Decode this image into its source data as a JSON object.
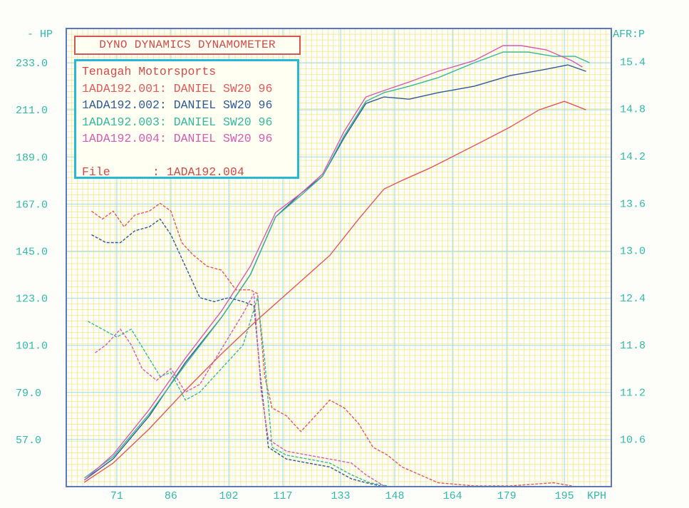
{
  "header": {
    "title": "DYNO DYNAMICS DYNAMOMETER",
    "left_axis_label": "- HP",
    "right_axis_label": "AFR:P",
    "x_unit": "KPH"
  },
  "info": {
    "shop": "Tenagah Motorsports",
    "runs": [
      "1ADA192.001: DANIEL SW20 96",
      "1ADA192.002: DANIEL SW20 96",
      "1ADA192.003: DANIEL SW20 96",
      "1ADA192.004: DANIEL SW20 96"
    ],
    "file_line": "File      : 1ADA192.004"
  },
  "colors": {
    "grid_yellow": "#f2e98e",
    "grid_cyan": "#9fdbe6",
    "axis_frame": "#5b79b8",
    "tick_text": "#31b9a8",
    "run1": "#e2585a",
    "run2": "#2f5a97",
    "run3": "#36b79d",
    "run4": "#d65bb5"
  },
  "chart_data": {
    "type": "line",
    "title": "DYNO DYNAMICS DYNAMOMETER",
    "xlabel": "KPH",
    "ylabel": "HP",
    "y2label": "AFR:P",
    "xlim": [
      57,
      208
    ],
    "ylim": [
      35,
      249
    ],
    "y2lim": [
      10.0,
      15.82
    ],
    "x_ticks": [
      "71",
      "86",
      "102",
      "117",
      "133",
      "148",
      "164",
      "179",
      "195"
    ],
    "y_ticks": [
      "57.0",
      "79.0",
      "101.0",
      "123.0",
      "145.0",
      "167.0",
      "189.0",
      "211.0",
      "233.0"
    ],
    "y2_ticks": [
      "10.6",
      "11.2",
      "11.8",
      "12.4",
      "13.0",
      "13.6",
      "14.2",
      "14.8",
      "15.4"
    ],
    "grid": true,
    "legend": "top-left box",
    "series": [
      {
        "name": "1ADA192.001: DANIEL SW20 96",
        "axis": "HP",
        "color": "#e2585a",
        "x": [
          62,
          70,
          80,
          90,
          100,
          110,
          120,
          130,
          138,
          145,
          150,
          158,
          165,
          172,
          180,
          188,
          195,
          201
        ],
        "y": [
          37,
          46,
          62,
          80,
          97,
          113,
          128,
          143,
          160,
          174,
          178,
          184,
          190,
          196,
          203,
          211,
          215,
          211
        ]
      },
      {
        "name": "1ADA192.002: DANIEL SW20 96",
        "axis": "HP",
        "color": "#2f5a97",
        "x": [
          62,
          70,
          80,
          90,
          100,
          108,
          115,
          122,
          128,
          134,
          140,
          145,
          152,
          160,
          170,
          180,
          190,
          196,
          201
        ],
        "y": [
          38,
          48,
          68,
          93,
          114,
          134,
          161,
          172,
          180,
          198,
          214,
          217,
          216,
          219,
          222,
          227,
          230,
          232,
          229
        ]
      },
      {
        "name": "1ADA192.003: DANIEL SW20 96",
        "axis": "HP",
        "color": "#36b79d",
        "x": [
          62,
          70,
          80,
          90,
          100,
          108,
          115,
          122,
          128,
          134,
          140,
          145,
          152,
          160,
          170,
          178,
          185,
          192,
          198,
          202
        ],
        "y": [
          39,
          49,
          69,
          92,
          114,
          134,
          161,
          171,
          180,
          199,
          215,
          219,
          222,
          226,
          233,
          238,
          238,
          236,
          236,
          233
        ]
      },
      {
        "name": "1ADA192.004: DANIEL SW20 96",
        "axis": "HP",
        "color": "#d65bb5",
        "x": [
          62,
          70,
          80,
          90,
          100,
          108,
          115,
          122,
          128,
          134,
          140,
          145,
          152,
          160,
          170,
          178,
          183,
          190,
          197,
          200
        ],
        "y": [
          38,
          50,
          71,
          95,
          117,
          138,
          163,
          172,
          181,
          201,
          217,
          220,
          224,
          229,
          234,
          241,
          241,
          239,
          234,
          231
        ]
      },
      {
        "name": "1ADA192.001 AFR",
        "axis": "AFR",
        "color": "#e2585a",
        "dashed": true,
        "x": [
          64,
          67,
          70,
          73,
          76,
          80,
          83,
          86,
          89,
          92,
          96,
          100,
          104,
          108,
          110,
          112,
          114,
          118,
          122,
          126,
          130,
          134,
          138,
          142,
          146,
          150,
          155,
          160,
          170,
          180,
          192,
          197
        ],
        "y": [
          13.5,
          13.4,
          13.5,
          13.3,
          13.45,
          13.5,
          13.6,
          13.5,
          13.1,
          12.95,
          12.8,
          12.75,
          12.5,
          12.5,
          12.45,
          11.4,
          11.0,
          10.9,
          10.7,
          10.9,
          11.1,
          11.0,
          10.8,
          10.5,
          10.4,
          10.25,
          10.15,
          10.05,
          10.0,
          9.95,
          10.05,
          9.9
        ]
      },
      {
        "name": "1ADA192.002 AFR",
        "axis": "AFR",
        "color": "#2f5a97",
        "dashed": true,
        "x": [
          64,
          68,
          72,
          76,
          80,
          83,
          86,
          90,
          94,
          98,
          102,
          106,
          109,
          111,
          113,
          118,
          124,
          130,
          136,
          140,
          144
        ],
        "y": [
          13.2,
          13.1,
          13.1,
          13.25,
          13.3,
          13.4,
          13.2,
          12.8,
          12.4,
          12.35,
          12.4,
          12.35,
          12.3,
          11.3,
          10.5,
          10.35,
          10.3,
          10.25,
          10.1,
          10.05,
          9.95
        ]
      },
      {
        "name": "1ADA192.003 AFR",
        "axis": "AFR",
        "color": "#36b79d",
        "dashed": true,
        "x": [
          63,
          67,
          71,
          75,
          79,
          83,
          86,
          90,
          94,
          98,
          102,
          106,
          110,
          112,
          114,
          118,
          124,
          130,
          136,
          141,
          146
        ],
        "y": [
          12.1,
          12.0,
          11.9,
          12.0,
          11.7,
          11.4,
          11.45,
          11.1,
          11.2,
          11.4,
          11.6,
          11.8,
          12.4,
          11.6,
          10.5,
          10.4,
          10.35,
          10.3,
          10.15,
          10.05,
          9.95
        ]
      },
      {
        "name": "1ADA192.004 AFR",
        "axis": "AFR",
        "color": "#d65bb5",
        "dashed": true,
        "x": [
          65,
          68,
          72,
          75,
          78,
          82,
          86,
          90,
          94,
          98,
          102,
          106,
          109,
          111,
          113,
          118,
          124,
          130,
          136,
          140,
          145
        ],
        "y": [
          11.7,
          11.8,
          12.0,
          11.8,
          11.5,
          11.35,
          11.5,
          11.2,
          11.3,
          11.6,
          11.9,
          12.2,
          12.45,
          11.2,
          10.6,
          10.45,
          10.4,
          10.35,
          10.3,
          10.15,
          9.95
        ]
      }
    ]
  }
}
